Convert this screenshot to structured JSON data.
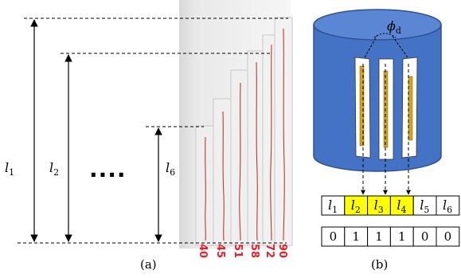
{
  "panel_a": {
    "caption": "(a)",
    "labels": {
      "l1": {
        "base": "l",
        "sub": "1"
      },
      "l2": {
        "base": "l",
        "sub": "2"
      },
      "l6": {
        "base": "l",
        "sub": "6"
      }
    },
    "ellipsis": "····",
    "strip_numbers": [
      "40",
      "45",
      "51",
      "58",
      "72",
      "90"
    ]
  },
  "panel_b": {
    "caption": "(b)",
    "angle_label": {
      "base": "ϕ",
      "sub": "d"
    },
    "length_row": [
      {
        "base": "l",
        "sub": "1",
        "highlight": false
      },
      {
        "base": "l",
        "sub": "2",
        "highlight": true
      },
      {
        "base": "l",
        "sub": "3",
        "highlight": true
      },
      {
        "base": "l",
        "sub": "4",
        "highlight": true
      },
      {
        "base": "l",
        "sub": "5",
        "highlight": false
      },
      {
        "base": "l",
        "sub": "6",
        "highlight": false
      }
    ],
    "binary_row": [
      "0",
      "1",
      "1",
      "1",
      "0",
      "0"
    ]
  },
  "colors": {
    "cylinder_blue": "#4472c4",
    "cylinder_top": "#5a86d4",
    "highlight_yellow": "#ffff00",
    "electrode_gold": "#d4a51c",
    "trace_red": "#c0392b",
    "number_red": "#e8202a"
  }
}
